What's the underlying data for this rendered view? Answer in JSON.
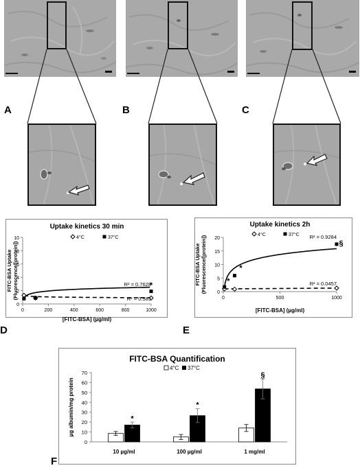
{
  "panels": {
    "micro": [
      "A",
      "B",
      "C"
    ],
    "D": "D",
    "E": "E",
    "F": "F"
  },
  "chart_data": [
    {
      "id": "D",
      "type": "scatter",
      "title": "Uptake kinetics 30 min",
      "xlabel": "[FITC-BSA] (µg/ml)",
      "ylabel": [
        "FITC-BSA Uptake",
        "(Fluorescence/[protein])"
      ],
      "xlim": [
        0,
        1000
      ],
      "ylim": [
        0,
        10
      ],
      "xticks": [
        0,
        200,
        400,
        600,
        800,
        1000
      ],
      "yticks": [
        0,
        2,
        4,
        6,
        8,
        10
      ],
      "legend": "top",
      "series": [
        {
          "name": "4°C",
          "marker": "open-diamond",
          "line": "dashed",
          "x": [
            10,
            100,
            1000
          ],
          "y": [
            1.3,
            0.9,
            0.9
          ]
        },
        {
          "name": "37°C",
          "marker": "filled-square",
          "line": "solid",
          "x": [
            10,
            100,
            1000
          ],
          "y": [
            0.8,
            0.9,
            1.9
          ]
        }
      ],
      "annotations": [
        {
          "text": "*",
          "x": 1000,
          "y": 2.5
        },
        {
          "text": "R² = 0.7628",
          "x": 1000,
          "y": 2.7
        },
        {
          "text": "R² = 0.583",
          "x": 1000,
          "y": 0.5
        }
      ]
    },
    {
      "id": "E",
      "type": "scatter",
      "title": "Uptake kinetics 2h",
      "xlabel": "[FITC-BSA] (µg/ml)",
      "ylabel": [
        "FITC-BSA Uptake",
        "(Fluorescence/[protein])"
      ],
      "xlim": [
        0,
        1000
      ],
      "ylim": [
        0,
        20
      ],
      "xticks": [
        0,
        500,
        1000
      ],
      "yticks": [
        0,
        5,
        10,
        15,
        20
      ],
      "legend": "top",
      "series": [
        {
          "name": "4°C",
          "marker": "open-diamond",
          "line": "dashed",
          "x": [
            10,
            100,
            1000
          ],
          "y": [
            1.0,
            0.9,
            1.3
          ]
        },
        {
          "name": "37°C",
          "marker": "filled-square",
          "line": "solid",
          "x": [
            10,
            100,
            1000
          ],
          "y": [
            1.7,
            5.9,
            17.5
          ]
        }
      ],
      "annotations": [
        {
          "text": "*",
          "x": 45,
          "y": 3.0
        },
        {
          "text": "*",
          "x": 155,
          "y": 7.8
        },
        {
          "text": "§",
          "x": 1040,
          "y": 17.0
        },
        {
          "text": "R² = 0.9284",
          "x": 1000,
          "y": 19.5
        },
        {
          "text": "R² = 0.0457",
          "x": 1000,
          "y": 2.3
        }
      ]
    },
    {
      "id": "F",
      "type": "bar",
      "title": "FITC-BSA Quantification",
      "ylabel": "µg albumin/mg protein",
      "categories": [
        "10 µg/ml",
        "100 µg/ml",
        "1 mg/ml"
      ],
      "ylim": [
        0,
        70
      ],
      "yticks": [
        0,
        10,
        20,
        30,
        40,
        50,
        60,
        70
      ],
      "legend": "top",
      "series": [
        {
          "name": "4°C",
          "fill": "#ffffff",
          "values": [
            8.5,
            5,
            14
          ],
          "errors": [
            2,
            2.5,
            3.5
          ]
        },
        {
          "name": "37°C",
          "fill": "#000000",
          "values": [
            17,
            26.5,
            53.5
          ],
          "errors": [
            3,
            7,
            10
          ]
        }
      ],
      "annotations": [
        {
          "text": "*",
          "category": 0,
          "y": 21
        },
        {
          "text": "*",
          "category": 1,
          "y": 35
        },
        {
          "text": "§",
          "category": 2,
          "y": 65
        }
      ]
    }
  ]
}
